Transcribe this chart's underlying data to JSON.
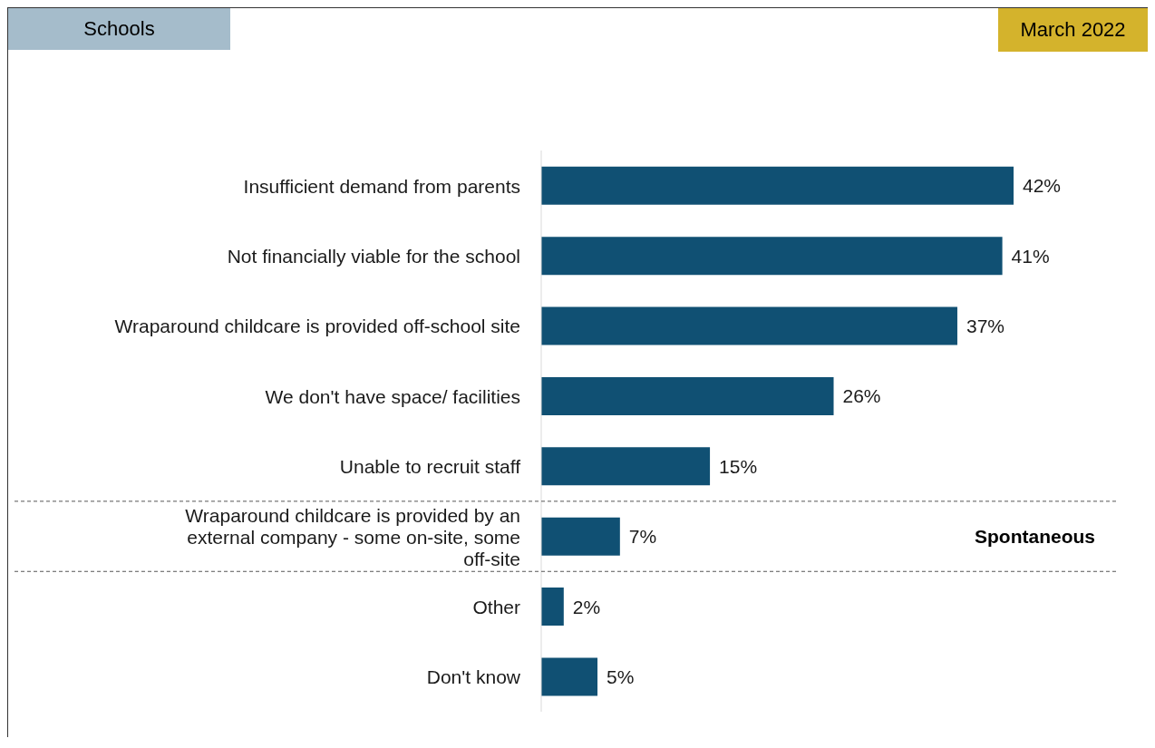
{
  "chart_data": {
    "type": "bar",
    "orientation": "horizontal",
    "title": "Schools",
    "subtitle": "March 2022",
    "categories": [
      "Insufficient demand from parents",
      "Not financially viable for the school",
      "Wraparound childcare is provided off-school site",
      "We don't have space/ facilities",
      "Unable to recruit staff",
      "Wraparound childcare is provided by an external company - some on-site, some off-site",
      "Other",
      "Don't know"
    ],
    "values": [
      42,
      41,
      37,
      26,
      15,
      7,
      2,
      5
    ],
    "color": "#105073",
    "data_labels": true,
    "value_labels": [
      "42%",
      "41%",
      "37%",
      "26%",
      "15%",
      "7%",
      "2%",
      "5%"
    ],
    "annotations": [
      "Spontaneous"
    ],
    "grid": false,
    "legend": false
  }
}
